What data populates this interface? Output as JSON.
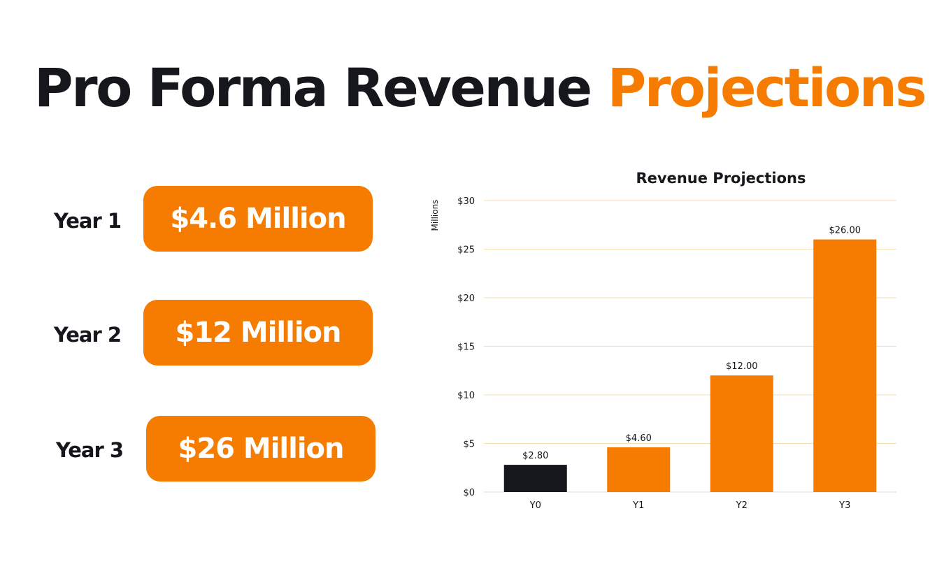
{
  "title": {
    "main": "Pro Forma Revenue",
    "accent": "Projections"
  },
  "colors": {
    "accent": "#f57c00",
    "dark": "#16171c",
    "grid": "#f3dfb0"
  },
  "cards": [
    {
      "label": "Year 1",
      "value": "$4.6 Million"
    },
    {
      "label": "Year 2",
      "value": "$12 Million"
    },
    {
      "label": "Year 3",
      "value": "$26 Million"
    }
  ],
  "chart_data": {
    "type": "bar",
    "title": "Revenue Projections",
    "xlabel": "",
    "ylabel": "Millions",
    "categories": [
      "Y0",
      "Y1",
      "Y2",
      "Y3"
    ],
    "values": [
      2.8,
      4.6,
      12,
      26
    ],
    "data_labels": [
      "$2.80",
      "$4.60",
      "$12.00",
      "$26.00"
    ],
    "bar_colors": [
      "#16171c",
      "#f57c00",
      "#f57c00",
      "#f57c00"
    ],
    "ylim": [
      0,
      30
    ],
    "yticks": [
      0,
      5,
      10,
      15,
      20,
      25,
      30
    ],
    "ytick_labels": [
      "$0",
      "$5",
      "$10",
      "$15",
      "$20",
      "$25",
      "$30"
    ],
    "grid": true,
    "legend": "none"
  }
}
